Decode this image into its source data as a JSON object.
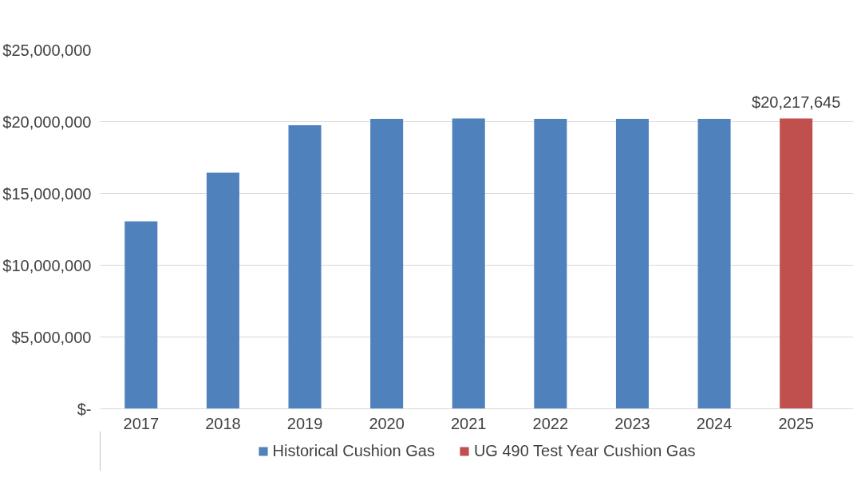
{
  "chart_data": {
    "type": "bar",
    "categories": [
      "2017",
      "2018",
      "2019",
      "2020",
      "2021",
      "2022",
      "2023",
      "2024",
      "2025"
    ],
    "series": [
      {
        "name": "Historical Cushion Gas",
        "color": "#4f81bd",
        "values": [
          13050000,
          16450000,
          19750000,
          20200000,
          20220000,
          20200000,
          20200000,
          20200000,
          null
        ]
      },
      {
        "name": "UG 490 Test Year Cushion Gas",
        "color": "#c0504d",
        "values": [
          null,
          null,
          null,
          null,
          null,
          null,
          null,
          null,
          20217645
        ],
        "value_labels": [
          null,
          null,
          null,
          null,
          null,
          null,
          null,
          null,
          "$20,217,645"
        ]
      }
    ],
    "ylim": [
      0,
      25000000
    ],
    "yticks": [
      {
        "value": 0,
        "label": "$-"
      },
      {
        "value": 5000000,
        "label": "$5,000,000"
      },
      {
        "value": 10000000,
        "label": "$10,000,000"
      },
      {
        "value": 15000000,
        "label": "$15,000,000"
      },
      {
        "value": 20000000,
        "label": "$20,000,000"
      },
      {
        "value": 25000000,
        "label": "$25,000,000"
      }
    ],
    "grid": "y",
    "legend": "bottom"
  }
}
